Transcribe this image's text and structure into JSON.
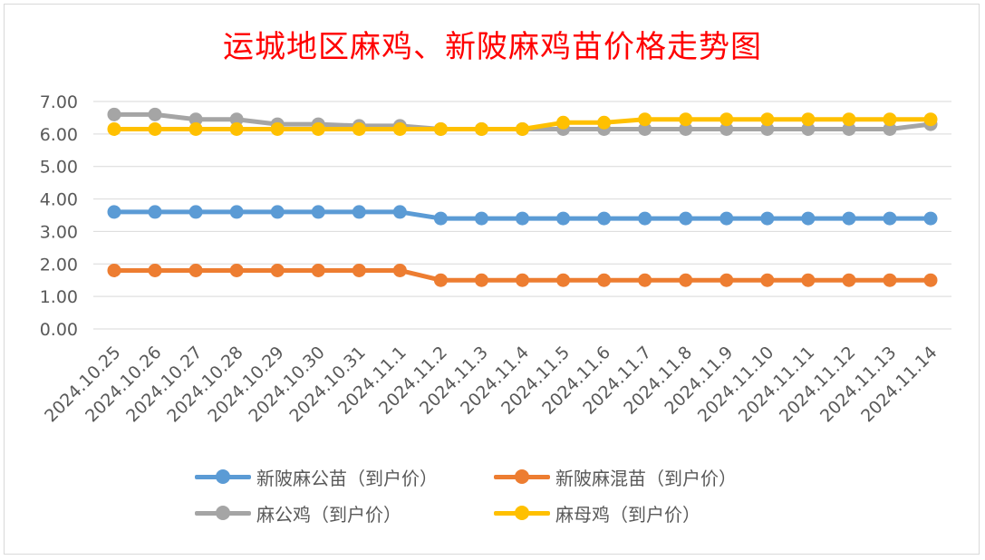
{
  "chart_data": {
    "type": "line",
    "title": "运城地区麻鸡、新陂麻鸡苗价格走势图",
    "categories": [
      "2024.10.25",
      "2024.10.26",
      "2024.10.27",
      "2024.10.28",
      "2024.10.29",
      "2024.10.30",
      "2024.10.31",
      "2024.11.1",
      "2024.11.2",
      "2024.11.3",
      "2024.11.4",
      "2024.11.5",
      "2024.11.6",
      "2024.11.7",
      "2024.11.8",
      "2024.11.9",
      "2024.11.10",
      "2024.11.11",
      "2024.11.12",
      "2024.11.13",
      "2024.11.14"
    ],
    "ylim": [
      0,
      7
    ],
    "yticks": [
      "0.00",
      "1.00",
      "2.00",
      "3.00",
      "4.00",
      "5.00",
      "6.00",
      "7.00"
    ],
    "grid": true,
    "legend_position": "bottom",
    "series": [
      {
        "name": "新陂麻公苗（到户价）",
        "color": "#5b9bd5",
        "values": [
          3.6,
          3.6,
          3.6,
          3.6,
          3.6,
          3.6,
          3.6,
          3.6,
          3.4,
          3.4,
          3.4,
          3.4,
          3.4,
          3.4,
          3.4,
          3.4,
          3.4,
          3.4,
          3.4,
          3.4,
          3.4
        ]
      },
      {
        "name": "新陂麻混苗（到户价）",
        "color": "#ed7d31",
        "values": [
          1.8,
          1.8,
          1.8,
          1.8,
          1.8,
          1.8,
          1.8,
          1.8,
          1.5,
          1.5,
          1.5,
          1.5,
          1.5,
          1.5,
          1.5,
          1.5,
          1.5,
          1.5,
          1.5,
          1.5,
          1.5
        ]
      },
      {
        "name": "麻公鸡（到户价）",
        "color": "#a5a5a5",
        "values": [
          6.6,
          6.6,
          6.45,
          6.45,
          6.3,
          6.3,
          6.25,
          6.25,
          6.15,
          6.15,
          6.15,
          6.15,
          6.15,
          6.15,
          6.15,
          6.15,
          6.15,
          6.15,
          6.15,
          6.15,
          6.3
        ]
      },
      {
        "name": "麻母鸡（到户价）",
        "color": "#ffc000",
        "values": [
          6.15,
          6.15,
          6.15,
          6.15,
          6.15,
          6.15,
          6.15,
          6.15,
          6.15,
          6.15,
          6.15,
          6.35,
          6.35,
          6.45,
          6.45,
          6.45,
          6.45,
          6.45,
          6.45,
          6.45,
          6.45
        ]
      }
    ]
  }
}
